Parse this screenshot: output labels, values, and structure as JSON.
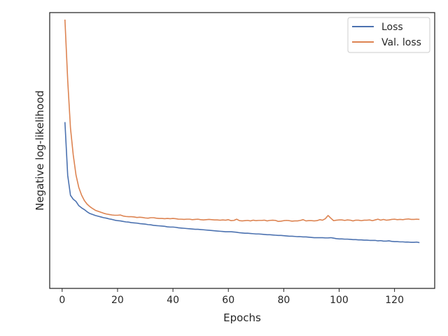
{
  "chart_data": {
    "type": "line",
    "title": "",
    "xlabel": "Epochs",
    "ylabel": "Negative log-likelihood",
    "xlim": [
      -4.5,
      134.5
    ],
    "ylim": [
      0,
      1
    ],
    "x_ticks": [
      0,
      20,
      40,
      60,
      80,
      100,
      120
    ],
    "y_ticks_shown": false,
    "grid": false,
    "legend_position": "top-right",
    "x": [
      1,
      2,
      3,
      4,
      5,
      6,
      7,
      8,
      9,
      10,
      11,
      12,
      13,
      14,
      15,
      16,
      17,
      18,
      19,
      20,
      21,
      22,
      23,
      24,
      25,
      26,
      27,
      28,
      29,
      30,
      31,
      32,
      33,
      34,
      35,
      36,
      37,
      38,
      39,
      40,
      41,
      42,
      43,
      44,
      45,
      46,
      47,
      48,
      49,
      50,
      51,
      52,
      53,
      54,
      55,
      56,
      57,
      58,
      59,
      60,
      61,
      62,
      63,
      64,
      65,
      66,
      67,
      68,
      69,
      70,
      71,
      72,
      73,
      74,
      75,
      76,
      77,
      78,
      79,
      80,
      81,
      82,
      83,
      84,
      85,
      86,
      87,
      88,
      89,
      90,
      91,
      92,
      93,
      94,
      95,
      96,
      97,
      98,
      99,
      100,
      101,
      102,
      103,
      104,
      105,
      106,
      107,
      108,
      109,
      110,
      111,
      112,
      113,
      114,
      115,
      116,
      117,
      118,
      119,
      120,
      121,
      122,
      123,
      124,
      125,
      126,
      127,
      128,
      129
    ],
    "series": [
      {
        "name": "Loss",
        "color": "#4c72b0",
        "values": [
          0.584,
          0.368,
          0.287,
          0.271,
          0.262,
          0.245,
          0.236,
          0.229,
          0.22,
          0.213,
          0.209,
          0.205,
          0.202,
          0.199,
          0.196,
          0.194,
          0.191,
          0.189,
          0.186,
          0.184,
          0.183,
          0.181,
          0.179,
          0.178,
          0.176,
          0.175,
          0.174,
          0.172,
          0.171,
          0.17,
          0.168,
          0.167,
          0.165,
          0.164,
          0.163,
          0.162,
          0.161,
          0.159,
          0.158,
          0.158,
          0.157,
          0.155,
          0.154,
          0.153,
          0.152,
          0.151,
          0.15,
          0.149,
          0.149,
          0.148,
          0.147,
          0.146,
          0.145,
          0.144,
          0.143,
          0.142,
          0.141,
          0.14,
          0.139,
          0.139,
          0.139,
          0.138,
          0.137,
          0.135,
          0.134,
          0.133,
          0.133,
          0.132,
          0.131,
          0.13,
          0.13,
          0.129,
          0.128,
          0.127,
          0.127,
          0.126,
          0.125,
          0.124,
          0.124,
          0.123,
          0.122,
          0.121,
          0.121,
          0.12,
          0.119,
          0.119,
          0.118,
          0.118,
          0.117,
          0.116,
          0.115,
          0.115,
          0.115,
          0.115,
          0.114,
          0.114,
          0.115,
          0.113,
          0.111,
          0.11,
          0.11,
          0.109,
          0.109,
          0.108,
          0.107,
          0.107,
          0.106,
          0.106,
          0.105,
          0.105,
          0.104,
          0.104,
          0.104,
          0.102,
          0.103,
          0.101,
          0.101,
          0.102,
          0.1,
          0.099,
          0.099,
          0.098,
          0.098,
          0.097,
          0.097,
          0.096,
          0.096,
          0.097,
          0.095
        ]
      },
      {
        "name": "Val. loss",
        "color": "#dd8452",
        "values": [
          1.0,
          0.754,
          0.56,
          0.451,
          0.369,
          0.319,
          0.288,
          0.266,
          0.251,
          0.241,
          0.233,
          0.226,
          0.222,
          0.218,
          0.214,
          0.211,
          0.209,
          0.207,
          0.206,
          0.206,
          0.207,
          0.203,
          0.201,
          0.2,
          0.2,
          0.199,
          0.197,
          0.198,
          0.197,
          0.195,
          0.194,
          0.196,
          0.196,
          0.194,
          0.193,
          0.193,
          0.192,
          0.193,
          0.192,
          0.193,
          0.192,
          0.19,
          0.19,
          0.189,
          0.19,
          0.19,
          0.188,
          0.189,
          0.19,
          0.188,
          0.187,
          0.188,
          0.189,
          0.188,
          0.187,
          0.187,
          0.186,
          0.187,
          0.186,
          0.188,
          0.184,
          0.185,
          0.19,
          0.184,
          0.183,
          0.184,
          0.185,
          0.183,
          0.186,
          0.184,
          0.185,
          0.185,
          0.186,
          0.183,
          0.185,
          0.186,
          0.185,
          0.181,
          0.182,
          0.184,
          0.185,
          0.184,
          0.182,
          0.183,
          0.183,
          0.185,
          0.188,
          0.183,
          0.184,
          0.184,
          0.183,
          0.184,
          0.188,
          0.186,
          0.192,
          0.205,
          0.194,
          0.184,
          0.186,
          0.187,
          0.187,
          0.185,
          0.187,
          0.186,
          0.183,
          0.186,
          0.186,
          0.184,
          0.186,
          0.186,
          0.187,
          0.184,
          0.187,
          0.19,
          0.186,
          0.189,
          0.186,
          0.187,
          0.189,
          0.19,
          0.188,
          0.189,
          0.188,
          0.19,
          0.191,
          0.189,
          0.189,
          0.19,
          0.189
        ]
      }
    ]
  }
}
